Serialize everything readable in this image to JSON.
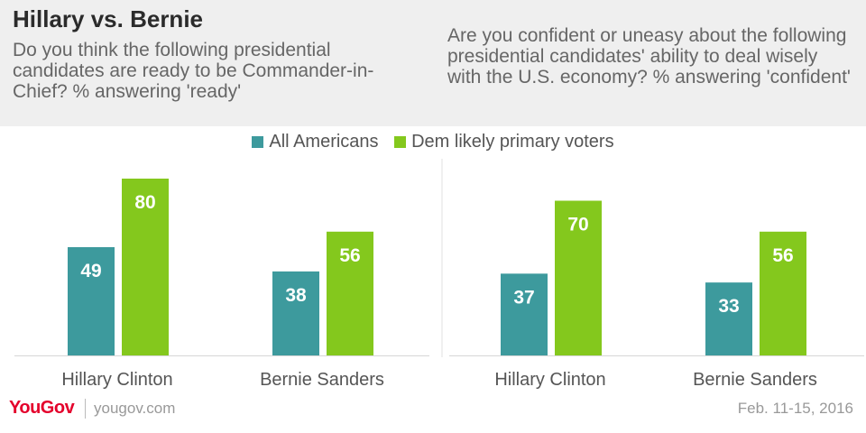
{
  "title": "Hillary vs. Bernie",
  "colors": {
    "all_americans": "#3d9a9d",
    "dem_likely": "#84c81d"
  },
  "legend": {
    "all_americans": "All Americans",
    "dem_likely": "Dem likely primary voters"
  },
  "chart_data": [
    {
      "type": "bar",
      "subtitle": "Do you think the following presidential candidates are ready to be Commander-in-Chief? % answering 'ready'",
      "categories": [
        "Hillary Clinton",
        "Bernie Sanders"
      ],
      "series": [
        {
          "name": "All Americans",
          "values": [
            49,
            38
          ]
        },
        {
          "name": "Dem likely primary voters",
          "values": [
            80,
            56
          ]
        }
      ],
      "ylim": [
        0,
        100
      ]
    },
    {
      "type": "bar",
      "subtitle": "Are you confident or uneasy about the following presidential candidates' ability to deal wisely with the U.S. economy? % answering 'confident'",
      "categories": [
        "Hillary Clinton",
        "Bernie Sanders"
      ],
      "series": [
        {
          "name": "All Americans",
          "values": [
            37,
            33
          ]
        },
        {
          "name": "Dem likely primary voters",
          "values": [
            70,
            56
          ]
        }
      ],
      "ylim": [
        0,
        100
      ]
    }
  ],
  "footer": {
    "logo": "YouGov",
    "url": "yougov.com",
    "date": "Feb. 11-15, 2016"
  }
}
